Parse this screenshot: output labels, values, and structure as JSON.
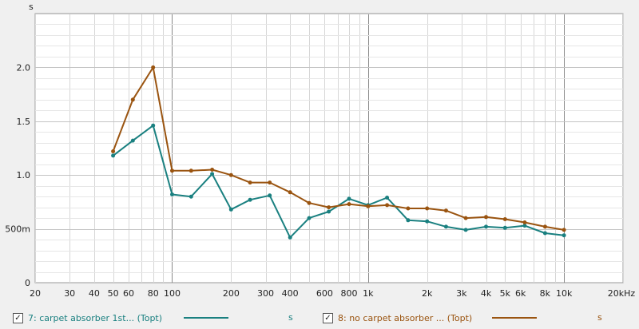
{
  "chart_data": {
    "type": "line",
    "title": "",
    "xlabel": "",
    "ylabel": "s",
    "x_unit_label": "20kHz",
    "x_scale": "log",
    "xlim": [
      20,
      20000
    ],
    "ylim": [
      0,
      2.5
    ],
    "grid": true,
    "x_ticks": [
      {
        "value": 20,
        "label": "20"
      },
      {
        "value": 30,
        "label": "30"
      },
      {
        "value": 40,
        "label": "40"
      },
      {
        "value": 50,
        "label": "50"
      },
      {
        "value": 60,
        "label": "60"
      },
      {
        "value": 80,
        "label": "80"
      },
      {
        "value": 100,
        "label": "100"
      },
      {
        "value": 200,
        "label": "200"
      },
      {
        "value": 300,
        "label": "300"
      },
      {
        "value": 400,
        "label": "400"
      },
      {
        "value": 600,
        "label": "600"
      },
      {
        "value": 800,
        "label": "800"
      },
      {
        "value": 1000,
        "label": "1k"
      },
      {
        "value": 2000,
        "label": "2k"
      },
      {
        "value": 3000,
        "label": "3k"
      },
      {
        "value": 4000,
        "label": "4k"
      },
      {
        "value": 5000,
        "label": "5k"
      },
      {
        "value": 6000,
        "label": "6k"
      },
      {
        "value": 8000,
        "label": "8k"
      },
      {
        "value": 10000,
        "label": "10k"
      }
    ],
    "y_ticks": [
      {
        "value": 0,
        "label": "0"
      },
      {
        "value": 0.5,
        "label": "500m"
      },
      {
        "value": 1.0,
        "label": "1.0"
      },
      {
        "value": 1.5,
        "label": "1.5"
      },
      {
        "value": 2.0,
        "label": "2.0"
      }
    ],
    "x": [
      50,
      63,
      80,
      100,
      125,
      160,
      200,
      250,
      315,
      400,
      500,
      630,
      800,
      1000,
      1250,
      1600,
      2000,
      2500,
      3150,
      4000,
      5000,
      6300,
      8000,
      10000
    ],
    "series": [
      {
        "name": "7: carpet absorber 1st... (Topt)",
        "unit": "s",
        "color": "#1a8080",
        "values": [
          1.18,
          1.32,
          1.46,
          0.82,
          0.8,
          1.01,
          0.68,
          0.77,
          0.81,
          0.42,
          0.6,
          0.66,
          0.78,
          0.72,
          0.79,
          0.58,
          0.57,
          0.52,
          0.49,
          0.52,
          0.51,
          0.53,
          0.46,
          0.44
        ]
      },
      {
        "name": "8: no carpet absorber ... (Topt)",
        "unit": "s",
        "color": "#9a5410",
        "values": [
          1.22,
          1.7,
          2.0,
          1.04,
          1.04,
          1.05,
          1.0,
          0.93,
          0.93,
          0.84,
          0.74,
          0.7,
          0.73,
          0.71,
          0.72,
          0.69,
          0.69,
          0.67,
          0.6,
          0.61,
          0.59,
          0.56,
          0.52,
          0.49
        ]
      }
    ],
    "legend_position": "bottom"
  },
  "legend": {
    "items": [
      {
        "checked_glyph": "✓",
        "label": "7: carpet absorber 1st... (Topt)",
        "unit": "s"
      },
      {
        "checked_glyph": "✓",
        "label": "8: no carpet absorber ... (Topt)",
        "unit": "s"
      }
    ]
  }
}
